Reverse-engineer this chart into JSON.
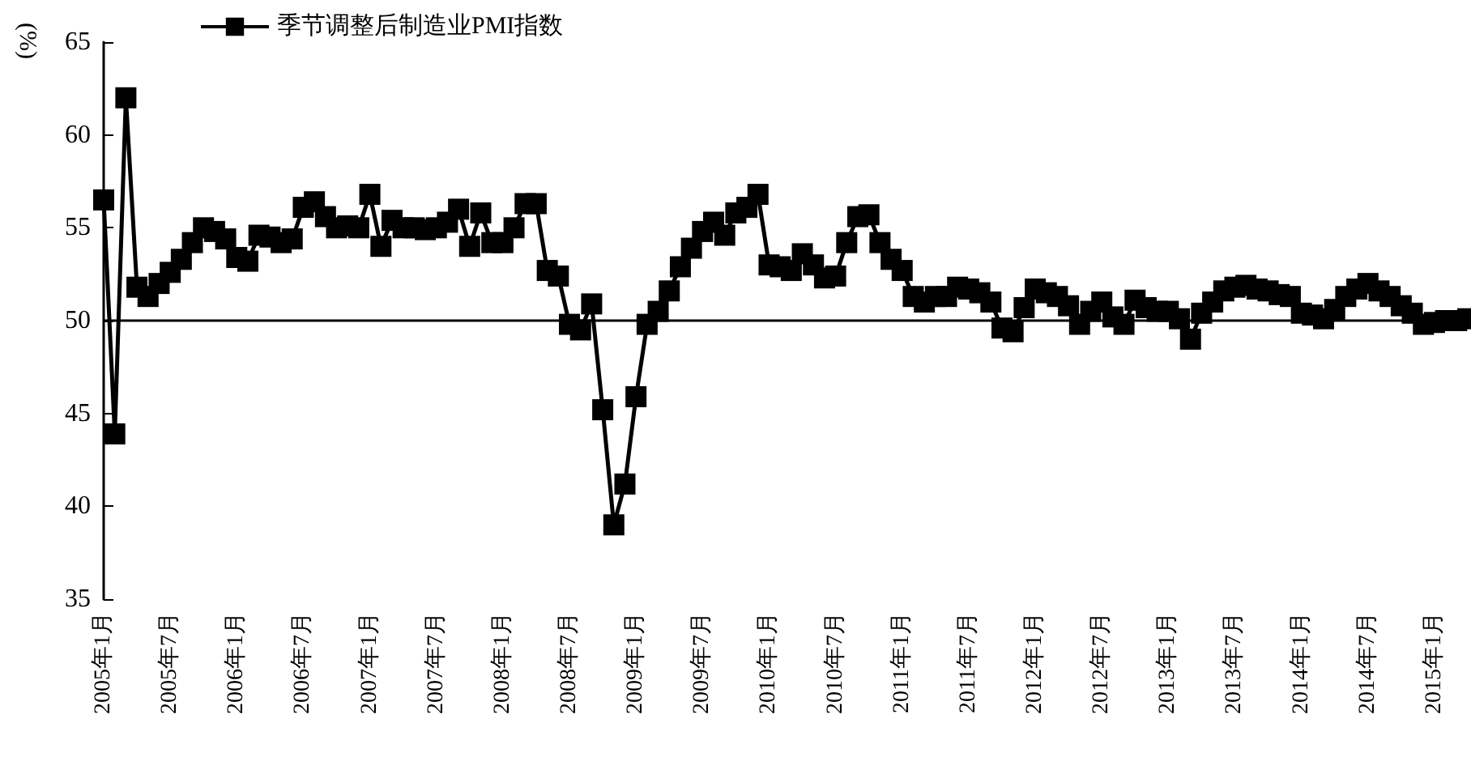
{
  "chart_data": {
    "type": "line",
    "ylabel": "(%)",
    "legend": "top left",
    "marker": "square",
    "line_style": "solid",
    "categories": [
      "2005年1月",
      null,
      null,
      null,
      null,
      null,
      "2005年7月",
      null,
      null,
      null,
      null,
      null,
      "2006年1月",
      null,
      null,
      null,
      null,
      null,
      "2006年7月",
      null,
      null,
      null,
      null,
      null,
      "2007年1月",
      null,
      null,
      null,
      null,
      null,
      "2007年7月",
      null,
      null,
      null,
      null,
      null,
      "2008年1月",
      null,
      null,
      null,
      null,
      null,
      "2008年7月",
      null,
      null,
      null,
      null,
      null,
      "2009年1月",
      null,
      null,
      null,
      null,
      null,
      "2009年7月",
      null,
      null,
      null,
      null,
      null,
      "2010年1月",
      null,
      null,
      null,
      null,
      null,
      "2010年7月",
      null,
      null,
      null,
      null,
      null,
      "2011年1月",
      null,
      null,
      null,
      null,
      null,
      "2011年7月",
      null,
      null,
      null,
      null,
      null,
      "2012年1月",
      null,
      null,
      null,
      null,
      null,
      "2012年7月",
      null,
      null,
      null,
      null,
      null,
      "2013年1月",
      null,
      null,
      null,
      null,
      null,
      "2013年7月",
      null,
      null,
      null,
      null,
      null,
      "2014年1月",
      null,
      null,
      null,
      null,
      null,
      "2014年7月",
      null,
      null,
      null,
      null,
      null,
      "2015年1月",
      null,
      null,
      null
    ],
    "series": [
      {
        "name": "季节调整后制造业PMI指数",
        "color": "#000000",
        "values": [
          56.5,
          43.9,
          62.0,
          51.8,
          51.3,
          52.0,
          52.6,
          53.3,
          54.2,
          55.0,
          54.8,
          54.4,
          53.4,
          53.2,
          54.6,
          54.5,
          54.2,
          54.4,
          56.1,
          56.4,
          55.6,
          55.0,
          55.1,
          55.0,
          56.8,
          54.0,
          55.4,
          55.0,
          55.0,
          54.9,
          55.0,
          55.3,
          56.0,
          54.0,
          55.8,
          54.2,
          54.2,
          55.0,
          56.3,
          56.3,
          52.7,
          52.4,
          49.8,
          49.5,
          50.9,
          45.2,
          39.0,
          41.2,
          45.9,
          49.8,
          50.5,
          51.6,
          52.9,
          53.9,
          54.8,
          55.3,
          54.6,
          55.8,
          56.1,
          56.8,
          53.0,
          52.9,
          52.7,
          53.6,
          53.0,
          52.3,
          52.4,
          54.2,
          55.6,
          55.7,
          54.2,
          53.3,
          52.7,
          51.3,
          51.0,
          51.3,
          51.3,
          51.8,
          51.7,
          51.5,
          51.0,
          49.6,
          49.4,
          50.7,
          51.7,
          51.5,
          51.3,
          50.8,
          49.8,
          50.5,
          51.0,
          50.2,
          49.8,
          51.1,
          50.7,
          50.5,
          50.5,
          50.1,
          49.0,
          50.4,
          51.0,
          51.6,
          51.8,
          51.9,
          51.7,
          51.6,
          51.4,
          51.3,
          50.4,
          50.3,
          50.1,
          50.6,
          51.3,
          51.7,
          52.0,
          51.6,
          51.3,
          50.8,
          50.4,
          49.8,
          49.9,
          50.0,
          50.0,
          50.1
        ]
      }
    ],
    "ylim": [
      35,
      65
    ],
    "yticks": [
      35,
      40,
      45,
      50,
      55,
      60,
      65
    ],
    "ref_lines": [
      {
        "axis": "y",
        "value": 50,
        "color": "#000000"
      }
    ]
  }
}
